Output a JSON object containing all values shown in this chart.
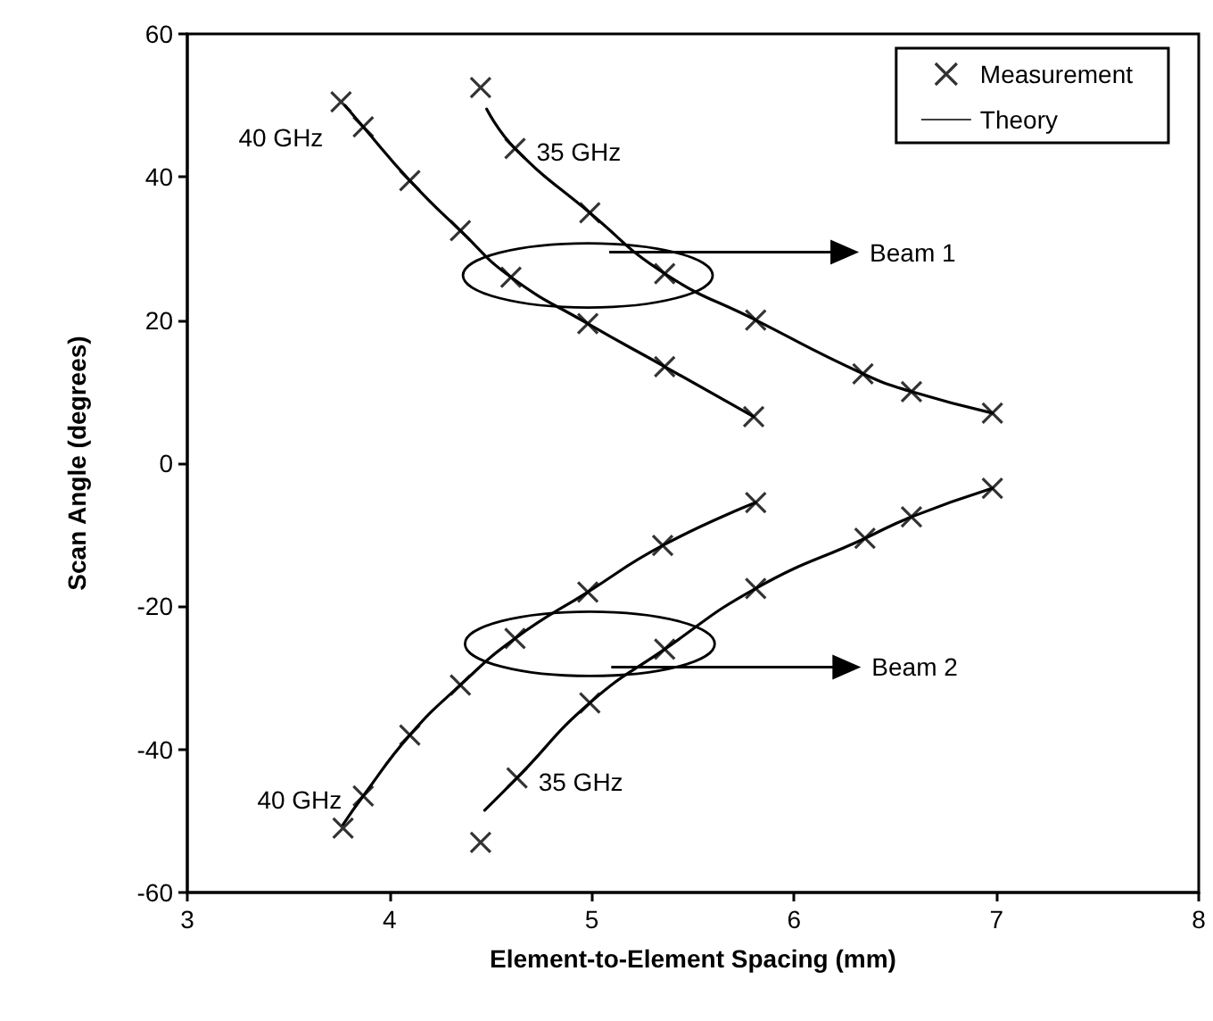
{
  "chart_data": {
    "type": "scatter",
    "xlabel": "Element-to-Element Spacing (mm)",
    "ylabel": "Scan Angle (degrees)",
    "xlim": [
      3,
      8
    ],
    "xticks": [
      3,
      4,
      5,
      6,
      7,
      8
    ],
    "ylim": [
      -60,
      60
    ],
    "yticks": [
      -60,
      -40,
      -20,
      0,
      20,
      40,
      60
    ],
    "grid": false,
    "legend": "top right",
    "marker": "cross",
    "series": [
      {
        "name": "Measurement",
        "color": "#000000",
        "x": [
          3.76,
          3.87,
          4.1,
          4.35,
          4.6,
          4.98,
          5.36,
          5.8
        ],
        "values": [
          50.5,
          47,
          39.5,
          32.5,
          26,
          19.5,
          13.5,
          6.5
        ]
      },
      {
        "color": "#000000",
        "x": [
          4.45,
          4.62,
          4.99,
          5.36,
          5.81,
          6.34,
          6.58,
          6.98
        ],
        "values": [
          52.5,
          44,
          35,
          26.5,
          20,
          12.5,
          10,
          7
        ]
      },
      {
        "color": "#000000",
        "x": [
          3.77,
          3.87,
          4.1,
          4.35,
          4.62,
          4.98,
          5.35,
          5.81
        ],
        "values": [
          -51,
          -46.5,
          -38,
          -31,
          -24.5,
          -18,
          -11.5,
          -5.5
        ]
      },
      {
        "color": "#000000",
        "x": [
          4.45,
          4.63,
          4.99,
          5.36,
          5.81,
          6.35,
          6.58,
          6.98
        ],
        "values": [
          -53,
          -44,
          -33.5,
          -26,
          -17.5,
          -10.5,
          -7.5,
          -3.5
        ]
      },
      {
        "name": "Theory",
        "type": "line",
        "marker": "none",
        "line_style": "solid",
        "color": "#000000",
        "x": [
          3.78,
          3.87,
          4.1,
          4.35,
          4.6,
          4.98,
          5.36,
          5.8
        ],
        "values": [
          50,
          47,
          39.5,
          32.5,
          26,
          19.5,
          13.5,
          6.5
        ]
      },
      {
        "type": "line",
        "marker": "none",
        "line_style": "solid",
        "color": "#000000",
        "x": [
          4.48,
          4.62,
          4.99,
          5.36,
          5.81,
          6.34,
          6.58,
          6.98
        ],
        "values": [
          49.5,
          44,
          35,
          26.5,
          20,
          12.5,
          10,
          7
        ]
      },
      {
        "type": "line",
        "marker": "none",
        "line_style": "solid",
        "color": "#000000",
        "x": [
          3.77,
          3.87,
          4.1,
          4.35,
          4.62,
          4.98,
          5.35,
          5.81
        ],
        "values": [
          -50.5,
          -46.5,
          -38,
          -31,
          -24.5,
          -18,
          -11.5,
          -5.5
        ]
      },
      {
        "type": "line",
        "marker": "none",
        "line_style": "solid",
        "color": "#000000",
        "x": [
          4.47,
          4.63,
          4.99,
          5.36,
          5.81,
          6.35,
          6.58,
          6.98
        ],
        "values": [
          -48.5,
          -44,
          -33.5,
          -26,
          -17.5,
          -10.5,
          -7.5,
          -3.5
        ]
      }
    ],
    "annotations": [
      "40 GHz",
      "35 GHz",
      "40 GHz",
      "35 GHz",
      "Beam 1",
      "Beam 2"
    ]
  }
}
